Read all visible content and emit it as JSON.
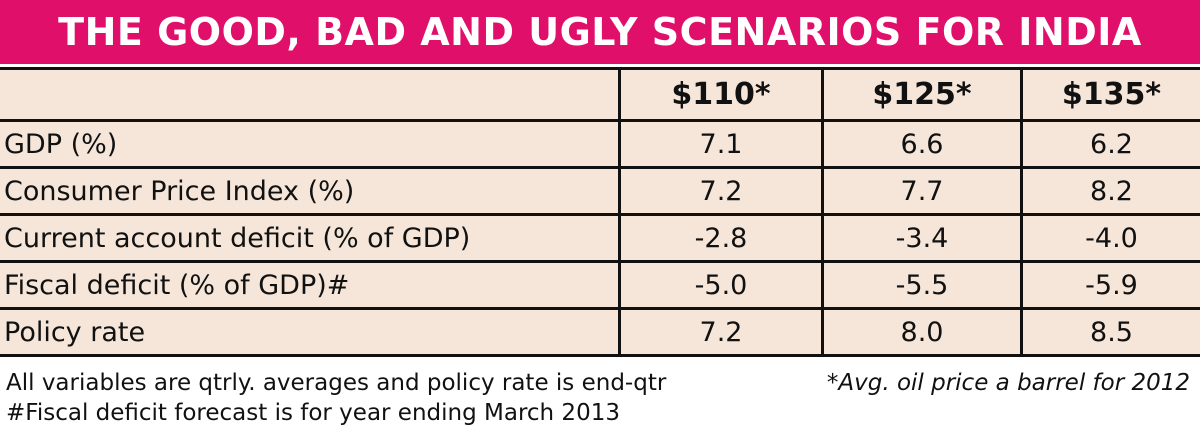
{
  "chart_data": {
    "type": "table",
    "title": "THE GOOD, BAD AND UGLY SCENARIOS FOR INDIA",
    "columns": [
      "$110*",
      "$125*",
      "$135*"
    ],
    "rows": [
      {
        "label": "GDP (%)",
        "values": [
          "7.1",
          "6.6",
          "6.2"
        ]
      },
      {
        "label": "Consumer Price Index (%)",
        "values": [
          "7.2",
          "7.7",
          "8.2"
        ]
      },
      {
        "label": "Current account deficit (% of GDP)",
        "values": [
          "-2.8",
          "-3.4",
          "-4.0"
        ]
      },
      {
        "label": "Fiscal deficit (% of GDP)#",
        "values": [
          "-5.0",
          "-5.5",
          "-5.9"
        ]
      },
      {
        "label": "Policy rate",
        "values": [
          "7.2",
          "8.0",
          "8.5"
        ]
      }
    ],
    "notes": [
      "All variables are qtrly. averages and policy rate is end-qtr",
      "#Fiscal deficit forecast is for year ending March 2013"
    ],
    "footnote": "*Avg. oil price a barrel for 2012"
  },
  "colors": {
    "title_bg": "#e0106a",
    "row_bg": "#f5e6d9"
  }
}
